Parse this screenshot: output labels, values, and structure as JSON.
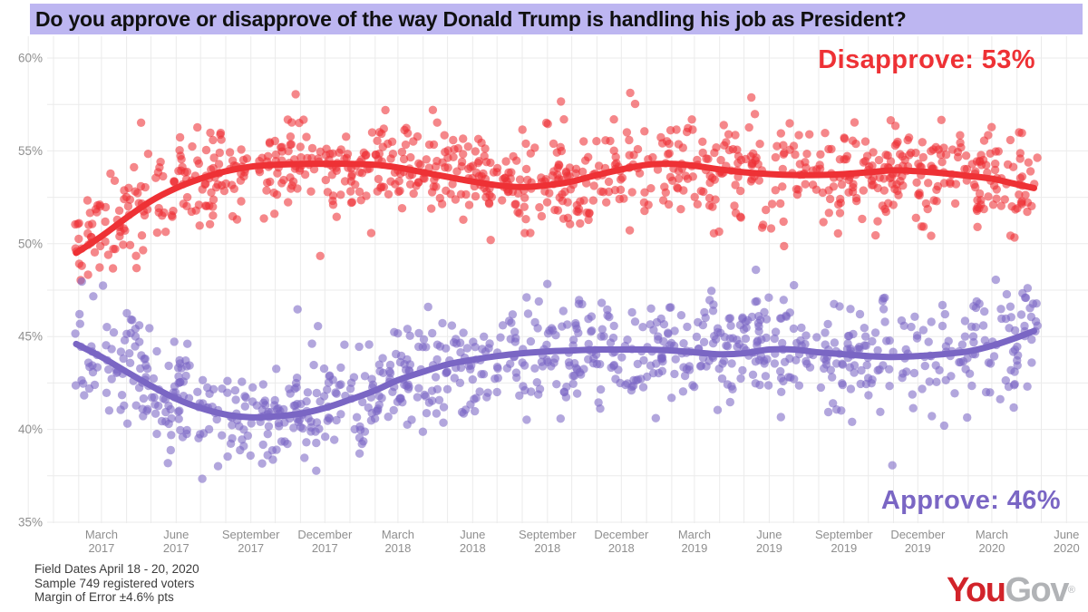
{
  "title": "Do you approve or disapprove of the way Donald Trump is handling his job as President?",
  "annotations": {
    "disapprove_label": "Disapprove: 53%",
    "approve_label": "Approve: 46%"
  },
  "footnote": {
    "field_dates": "Field Dates April 18 - 20, 2020",
    "sample": "Sample 749 registered voters",
    "moe": "Margin of Error ±4.6% pts"
  },
  "logo": {
    "part1": "You",
    "part2": "Gov",
    "registered": "®"
  },
  "colors": {
    "title_bg": "#bdb6f1",
    "disapprove": "#ee3135",
    "approve": "#7a66c4",
    "grid": "#ebebeb",
    "tick_text": "#8f8f8f",
    "footnote_text": "#3c3c3c",
    "logo_red": "#d2232a",
    "logo_gray": "#b1b3b6"
  },
  "chart_data": {
    "type": "scatter",
    "title": "Do you approve or disapprove of the way Donald Trump is handling his job as President?",
    "xlabel": "",
    "ylabel": "",
    "ylim": [
      35,
      60
    ],
    "grid": "on",
    "legend_position": "inline-annotations",
    "yticks": [
      {
        "value": 60,
        "label": "60%"
      },
      {
        "value": 55,
        "label": "55%"
      },
      {
        "value": 50,
        "label": "50%"
      },
      {
        "value": 45,
        "label": "45%"
      },
      {
        "value": 40,
        "label": "40%"
      },
      {
        "value": 35,
        "label": "35%"
      }
    ],
    "xticks": [
      {
        "month_index": 2,
        "line1": "March",
        "line2": "2017"
      },
      {
        "month_index": 5,
        "line1": "June",
        "line2": "2017"
      },
      {
        "month_index": 8,
        "line1": "September",
        "line2": "2017"
      },
      {
        "month_index": 11,
        "line1": "December",
        "line2": "2017"
      },
      {
        "month_index": 14,
        "line1": "March",
        "line2": "2018"
      },
      {
        "month_index": 17,
        "line1": "June",
        "line2": "2018"
      },
      {
        "month_index": 20,
        "line1": "September",
        "line2": "2018"
      },
      {
        "month_index": 23,
        "line1": "December",
        "line2": "2018"
      },
      {
        "month_index": 26,
        "line1": "March",
        "line2": "2019"
      },
      {
        "month_index": 29,
        "line1": "June",
        "line2": "2019"
      },
      {
        "month_index": 32,
        "line1": "September",
        "line2": "2019"
      },
      {
        "month_index": 35,
        "line1": "December",
        "line2": "2019"
      },
      {
        "month_index": 38,
        "line1": "March",
        "line2": "2020"
      },
      {
        "month_index": 41,
        "line1": "June",
        "line2": "2020"
      }
    ],
    "x_axis_note": "month_index 0 = January 2017; data runs late January 2017 through late April 2020",
    "series": [
      {
        "name": "Disapprove",
        "current_value": 53,
        "color": "#ee3135",
        "trend": {
          "month_index": [
            0.9,
            2,
            3,
            4,
            5,
            6,
            7,
            8,
            9,
            10,
            11,
            12,
            13,
            14,
            15,
            16,
            17,
            18,
            19,
            20,
            21,
            22,
            23,
            24,
            25,
            26,
            27,
            28,
            29,
            30,
            31,
            32,
            33,
            34,
            35,
            36,
            37,
            38,
            39,
            39.7
          ],
          "percent": [
            49.5,
            50.4,
            51.4,
            52.3,
            53.0,
            53.5,
            53.9,
            54.15,
            54.25,
            54.3,
            54.3,
            54.3,
            54.25,
            54.1,
            53.85,
            53.6,
            53.35,
            53.15,
            53.05,
            53.15,
            53.35,
            53.7,
            54.0,
            54.25,
            54.3,
            54.2,
            54.0,
            53.85,
            53.75,
            53.7,
            53.7,
            53.75,
            53.85,
            53.95,
            53.9,
            53.8,
            53.65,
            53.5,
            53.2,
            53.0
          ]
        },
        "scatter": {
          "points": 920,
          "sd": 1.35,
          "seed": 20170123,
          "min": 46.6,
          "max": 59.3
        }
      },
      {
        "name": "Approve",
        "current_value": 46,
        "color": "#7a66c4",
        "trend": {
          "month_index": [
            0.9,
            2,
            3,
            4,
            5,
            6,
            7,
            8,
            9,
            10,
            11,
            12,
            13,
            14,
            15,
            16,
            17,
            18,
            19,
            20,
            21,
            22,
            23,
            24,
            25,
            26,
            27,
            28,
            29,
            30,
            31,
            32,
            33,
            34,
            35,
            36,
            37,
            38,
            39,
            39.7
          ],
          "percent": [
            44.6,
            43.9,
            43.1,
            42.35,
            41.65,
            41.15,
            40.8,
            40.65,
            40.7,
            40.85,
            41.15,
            41.6,
            42.1,
            42.65,
            43.1,
            43.5,
            43.75,
            43.95,
            44.1,
            44.2,
            44.25,
            44.3,
            44.3,
            44.3,
            44.25,
            44.15,
            44.05,
            44.1,
            44.3,
            44.3,
            44.15,
            44.05,
            43.95,
            43.9,
            43.95,
            44.05,
            44.2,
            44.5,
            44.95,
            45.3
          ]
        },
        "scatter": {
          "points": 920,
          "sd": 1.5,
          "seed": 20200420,
          "min": 36.4,
          "max": 49.0
        }
      }
    ]
  }
}
